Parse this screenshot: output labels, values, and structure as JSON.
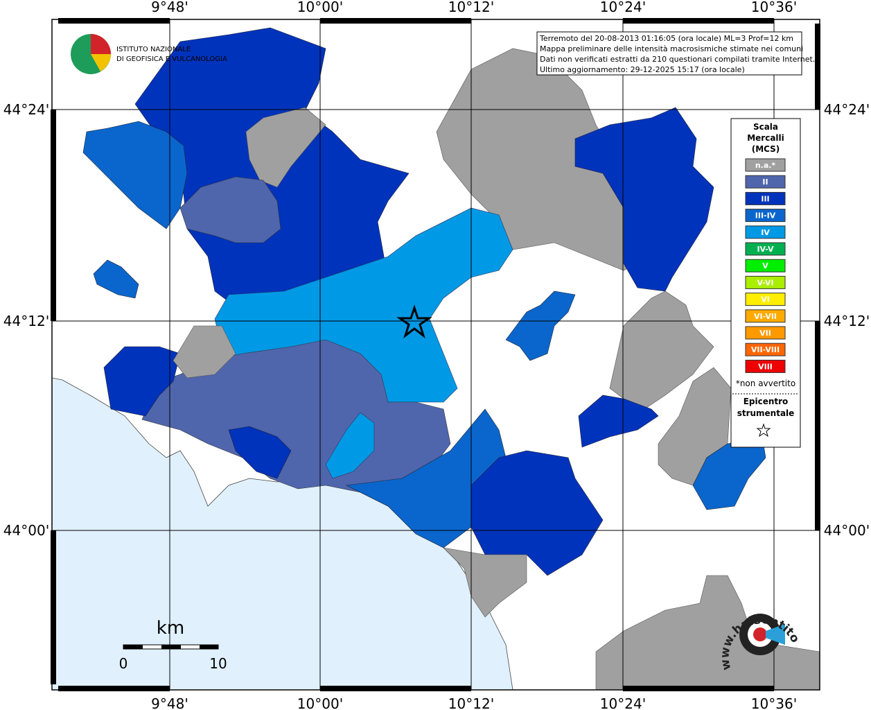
{
  "header": {
    "logo": [
      "ISTITUTO NAZIONALE",
      "DI GEOFISICA E VULCANOLOGIA"
    ]
  },
  "info": [
    "Terremoto del 20-08-2013 01:16:05 (ora locale) ML=3 Prof=12 km",
    "Mappa preliminare delle intensità macrosismiche stimate nei comuni",
    "Dati non verificati estratti da 210 questionari compilati tramite Internet.",
    "Ultimo aggiornamento: 29-12-2025 15:17 (ora locale)"
  ],
  "axes": {
    "longitudes": [
      "9°48'",
      "10°00'",
      "10°12'",
      "10°24'",
      "10°36'"
    ],
    "latitudes": [
      "44°24'",
      "44°12'",
      "44°00'"
    ]
  },
  "legend": {
    "title": [
      "Scala",
      "Mercalli",
      "(MCS)"
    ],
    "classes": [
      {
        "label": "n.a.*",
        "color": "#a0a0a0"
      },
      {
        "label": "II",
        "color": "#4f66ad"
      },
      {
        "label": "III",
        "color": "#0033bb"
      },
      {
        "label": "III-IV",
        "color": "#0a66cc"
      },
      {
        "label": "IV",
        "color": "#0099e6"
      },
      {
        "label": "IV-V",
        "color": "#00b050"
      },
      {
        "label": "V",
        "color": "#00ee00"
      },
      {
        "label": "V-VI",
        "color": "#aaee00"
      },
      {
        "label": "VI",
        "color": "#ffee00"
      },
      {
        "label": "VI-VII",
        "color": "#ffaa00"
      },
      {
        "label": "VII",
        "color": "#ff9900"
      },
      {
        "label": "VII-VIII",
        "color": "#ff6600"
      },
      {
        "label": "VIII",
        "color": "#ee0000"
      }
    ],
    "note": "*non avvertito",
    "epicenter": [
      "Epicentro",
      "strumentale"
    ]
  },
  "scale_bar": {
    "unit": "km",
    "labels": [
      0,
      10
    ]
  },
  "watermark": "www.haisentitoilterremoto.it"
}
